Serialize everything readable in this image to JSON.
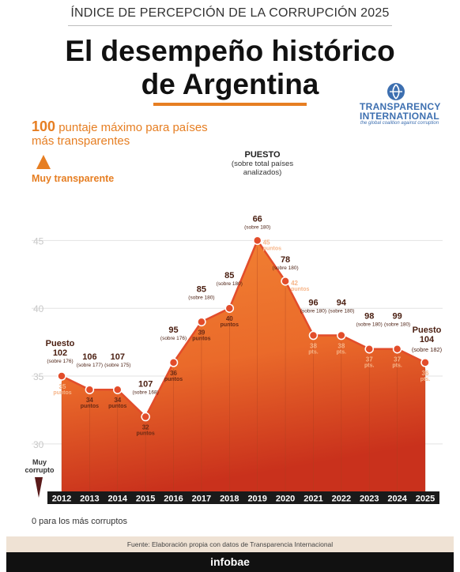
{
  "header": {
    "kicker": "ÍNDICE DE PERCEPCIÓN DE LA CORRUPCIÓN 2025",
    "title_line1": "El desempeño histórico",
    "title_line2": "de Argentina"
  },
  "logo": {
    "name_line1": "TRANSPARENCY",
    "name_line2": "INTERNATIONAL",
    "tagline": "the global coalition against corruption"
  },
  "legend_top": {
    "max_value": "100",
    "max_text": "puntaje máximo para países",
    "max_text2": "más transparentes",
    "very_transparent": "Muy transparente"
  },
  "rank_header": {
    "title": "PUESTO",
    "subtitle_line1": "(sobre total países",
    "subtitle_line2": "analizados)"
  },
  "legend_bottom": {
    "very_corrupt_line1": "Muy",
    "very_corrupt_line2": "corrupto",
    "min_note": "0 para los más corruptos"
  },
  "footer": {
    "source": "Fuente: Elaboración propia con datos de Transparencia Internacional",
    "brand": "infobae"
  },
  "colors": {
    "accent": "#e67e22",
    "area_top": "#f07f2d",
    "area_bottom": "#c9311c",
    "rank_text": "#4a1e10",
    "score_text": "#f2b48a",
    "year_bar": "#1a1a1a"
  },
  "chart_data": {
    "type": "area",
    "x": [
      "2012",
      "2013",
      "2014",
      "2015",
      "2016",
      "2017",
      "2018",
      "2019",
      "2020",
      "2021",
      "2022",
      "2023",
      "2024",
      "2025"
    ],
    "series": [
      {
        "values": [
          35,
          34,
          34,
          32,
          36,
          39,
          40,
          45,
          42,
          38,
          38,
          37,
          37,
          36
        ]
      }
    ],
    "ylim": [
      26.5,
      47
    ],
    "yticks": [
      30,
      35,
      40,
      45
    ],
    "grid": true,
    "points": [
      {
        "rank_prefix": "Puesto",
        "rank": "102",
        "rank_of": "(sobre 176)",
        "score_num": "35",
        "score_unit": "puntos"
      },
      {
        "rank": "106",
        "rank_of": "(sobre 177)",
        "score_num": "34",
        "score_unit": "puntos"
      },
      {
        "rank": "107",
        "rank_of": "(sobre 175)",
        "score_num": "34",
        "score_unit": "puntos"
      },
      {
        "rank": "107",
        "rank_of": "(sobre 168)",
        "score_num": "32",
        "score_unit": "puntos"
      },
      {
        "rank": "95",
        "rank_of": "(sobre 176)",
        "score_num": "36",
        "score_unit": "puntos"
      },
      {
        "rank": "85",
        "rank_of": "(sobre 180)",
        "score_num": "39",
        "score_unit": "puntos"
      },
      {
        "rank": "85",
        "rank_of": "(sobre 180)",
        "score_num": "40",
        "score_unit": "puntos"
      },
      {
        "rank": "66",
        "rank_of": "(sobre 180)",
        "score_num": "45",
        "score_unit": "puntos"
      },
      {
        "rank": "78",
        "rank_of": "(sobre 180)",
        "score_num": "42",
        "score_unit": "puntos"
      },
      {
        "rank": "96",
        "rank_of": "(sobre 180)",
        "score_num": "38",
        "score_unit": "pts."
      },
      {
        "rank": "94",
        "rank_of": "(sobre 180)",
        "score_num": "38",
        "score_unit": "pts."
      },
      {
        "rank": "98",
        "rank_of": "(sobre 180)",
        "score_num": "37",
        "score_unit": "pts."
      },
      {
        "rank": "99",
        "rank_of": "(sobre 180)",
        "score_num": "37",
        "score_unit": "pts."
      },
      {
        "rank_prefix": "Puesto",
        "rank": "104",
        "rank_of": "(sobre 182)",
        "score_num": "36",
        "score_unit": "pts."
      }
    ]
  }
}
